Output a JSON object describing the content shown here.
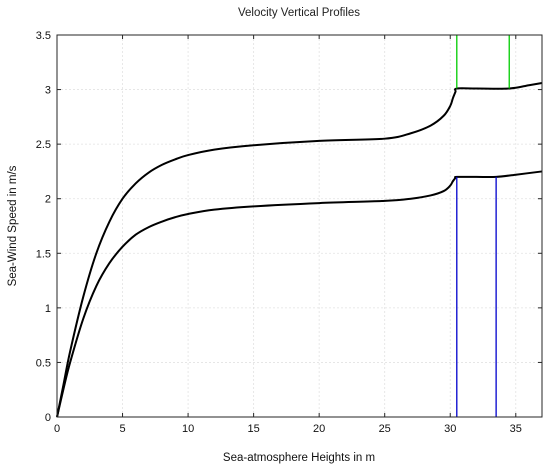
{
  "chart_data": {
    "type": "line",
    "title": "Velocity Vertical Profiles",
    "xlabel": "Sea-atmosphere Heights in m",
    "ylabel": "Sea-Wind Speed in m/s",
    "xlim": [
      0,
      37
    ],
    "ylim": [
      0,
      3.5
    ],
    "xticks": [
      0,
      5,
      10,
      15,
      20,
      25,
      30,
      35
    ],
    "yticks": [
      0,
      0.5,
      1,
      1.5,
      2,
      2.5,
      3,
      3.5
    ],
    "xtick_labels": [
      "0",
      "5",
      "10",
      "15",
      "20",
      "25",
      "30",
      "35"
    ],
    "ytick_labels": [
      "0",
      "0.5",
      "1",
      "1.5",
      "2",
      "2.5",
      "3",
      "3.5"
    ],
    "grid": true,
    "series": [
      {
        "color": "#000000",
        "x": [
          0,
          0.5,
          1,
          2,
          3,
          4,
          5,
          6,
          7,
          8,
          9,
          10,
          12,
          15,
          20,
          25,
          27,
          28.5,
          29.5,
          30,
          30.2,
          30.4,
          30.5,
          32,
          34.5,
          36,
          37
        ],
        "y": [
          0,
          0.3,
          0.6,
          1.1,
          1.5,
          1.79,
          2.0,
          2.14,
          2.24,
          2.31,
          2.36,
          2.4,
          2.45,
          2.49,
          2.53,
          2.55,
          2.6,
          2.67,
          2.76,
          2.85,
          2.92,
          2.98,
          3.01,
          3.01,
          3.01,
          3.04,
          3.06
        ]
      },
      {
        "color": "#000000",
        "x": [
          0,
          0.5,
          1,
          2,
          3,
          4,
          5,
          6,
          7,
          8,
          9,
          10,
          12,
          15,
          20,
          25,
          27,
          28.5,
          29.5,
          30,
          30.2,
          30.4,
          30.5,
          32,
          33.5,
          35,
          37
        ],
        "y": [
          0,
          0.26,
          0.5,
          0.9,
          1.2,
          1.41,
          1.56,
          1.67,
          1.74,
          1.79,
          1.83,
          1.86,
          1.9,
          1.93,
          1.96,
          1.98,
          2.0,
          2.03,
          2.07,
          2.12,
          2.16,
          2.19,
          2.2,
          2.2,
          2.2,
          2.22,
          2.25
        ]
      }
    ],
    "markers": [
      {
        "color": "#00cc00",
        "x": 30.5,
        "y_from": 3.01,
        "y_to": 3.5
      },
      {
        "color": "#00cc00",
        "x": 34.5,
        "y_from": 3.01,
        "y_to": 3.5
      },
      {
        "color": "#0000cc",
        "x": 30.5,
        "y_from": 0,
        "y_to": 2.2
      },
      {
        "color": "#0000cc",
        "x": 33.5,
        "y_from": 0,
        "y_to": 2.2
      }
    ]
  }
}
